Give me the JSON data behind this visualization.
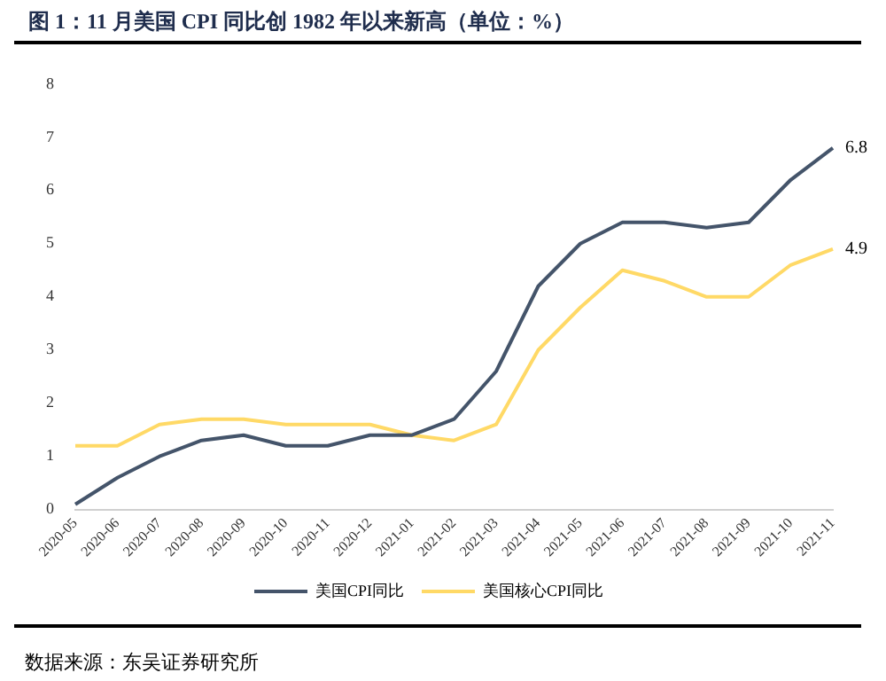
{
  "chart_data": {
    "type": "line",
    "title": "图 1：11 月美国 CPI 同比创 1982 年以来新高（单位：%）",
    "categories": [
      "2020-05",
      "2020-06",
      "2020-07",
      "2020-08",
      "2020-09",
      "2020-10",
      "2020-11",
      "2020-12",
      "2021-01",
      "2021-02",
      "2021-03",
      "2021-04",
      "2021-05",
      "2021-06",
      "2021-07",
      "2021-08",
      "2021-09",
      "2021-10",
      "2021-11"
    ],
    "series": [
      {
        "name": "美国CPI同比",
        "color": "#44546a",
        "values": [
          0.1,
          0.6,
          1.0,
          1.3,
          1.4,
          1.2,
          1.2,
          1.4,
          1.4,
          1.7,
          2.6,
          4.2,
          5.0,
          5.4,
          5.4,
          5.3,
          5.4,
          6.2,
          6.8
        ],
        "value_labels": [
          null,
          null,
          null,
          null,
          null,
          null,
          null,
          null,
          null,
          null,
          null,
          null,
          null,
          null,
          null,
          null,
          null,
          null,
          "6.8"
        ]
      },
      {
        "name": "美国核心CPI同比",
        "color": "#ffd966",
        "values": [
          1.2,
          1.2,
          1.6,
          1.7,
          1.7,
          1.6,
          1.6,
          1.6,
          1.4,
          1.3,
          1.6,
          3.0,
          3.8,
          4.5,
          4.3,
          4.0,
          4.0,
          4.6,
          4.9
        ],
        "value_labels": [
          null,
          null,
          null,
          null,
          null,
          null,
          null,
          null,
          null,
          null,
          null,
          null,
          null,
          null,
          null,
          null,
          null,
          null,
          "4.9"
        ]
      }
    ],
    "ylim": [
      0,
      8
    ],
    "yticks": [
      0,
      1,
      2,
      3,
      4,
      5,
      6,
      7,
      8
    ],
    "grid": false,
    "legend": "bottom",
    "marker": "none",
    "line_style": "solid",
    "annotations": [
      "数据来源：东吴证券研究所"
    ]
  }
}
